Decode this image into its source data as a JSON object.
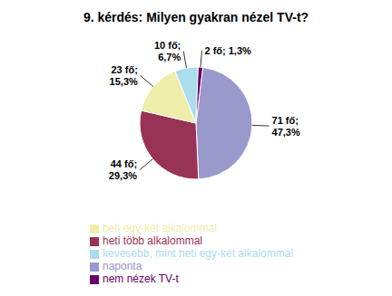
{
  "chart_data": {
    "type": "pie",
    "title": "9. kérdés: Milyen gyakran nézel TV-t?",
    "categories": [
      "naponta",
      "heti több alkalommal",
      "heti egy-két alkalommal",
      "kevesebb, mint heti egy-két alkalommal",
      "nem nézek TV-t"
    ],
    "values": [
      71,
      44,
      23,
      10,
      2
    ],
    "value_labels": [
      "71 fő;\n47,3%",
      "44 fő;\n29,3%",
      "23 fő;\n15,3%",
      "10 fő;\n6,7%",
      "2 fő; 1,3%"
    ],
    "colors": [
      "#9999cc",
      "#993355",
      "#eeeeaa",
      "#aaddee",
      "#660066"
    ],
    "data_labels": true,
    "legend": "bottom"
  }
}
